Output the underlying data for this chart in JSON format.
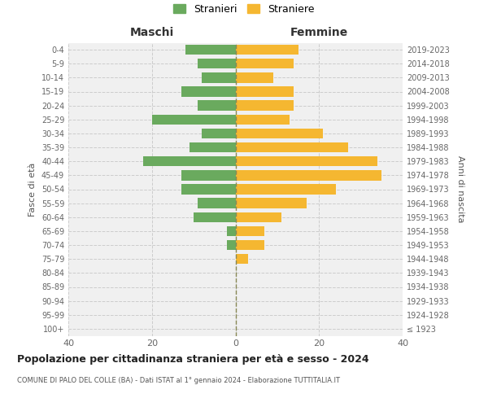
{
  "age_groups": [
    "100+",
    "95-99",
    "90-94",
    "85-89",
    "80-84",
    "75-79",
    "70-74",
    "65-69",
    "60-64",
    "55-59",
    "50-54",
    "45-49",
    "40-44",
    "35-39",
    "30-34",
    "25-29",
    "20-24",
    "15-19",
    "10-14",
    "5-9",
    "0-4"
  ],
  "birth_years": [
    "≤ 1923",
    "1924-1928",
    "1929-1933",
    "1934-1938",
    "1939-1943",
    "1944-1948",
    "1949-1953",
    "1954-1958",
    "1959-1963",
    "1964-1968",
    "1969-1973",
    "1974-1978",
    "1979-1983",
    "1984-1988",
    "1989-1993",
    "1994-1998",
    "1999-2003",
    "2004-2008",
    "2009-2013",
    "2014-2018",
    "2019-2023"
  ],
  "maschi": [
    0,
    0,
    0,
    0,
    0,
    0,
    2,
    2,
    10,
    9,
    13,
    13,
    22,
    11,
    8,
    20,
    9,
    13,
    8,
    9,
    12
  ],
  "femmine": [
    0,
    0,
    0,
    0,
    0,
    3,
    7,
    7,
    11,
    17,
    24,
    35,
    34,
    27,
    21,
    13,
    14,
    14,
    9,
    14,
    15
  ],
  "color_maschi": "#6aaa5e",
  "color_femmine": "#f5b731",
  "bg_color": "#f0f0f0",
  "grid_color": "#cccccc",
  "title": "Popolazione per cittadinanza straniera per età e sesso - 2024",
  "subtitle": "COMUNE DI PALO DEL COLLE (BA) - Dati ISTAT al 1° gennaio 2024 - Elaborazione TUTTITALIA.IT",
  "label_maschi": "Maschi",
  "label_femmine": "Femmine",
  "ylabel_left": "Fasce di età",
  "ylabel_right": "Anni di nascita",
  "legend_maschi": "Stranieri",
  "legend_femmine": "Straniere",
  "xlim": 40
}
